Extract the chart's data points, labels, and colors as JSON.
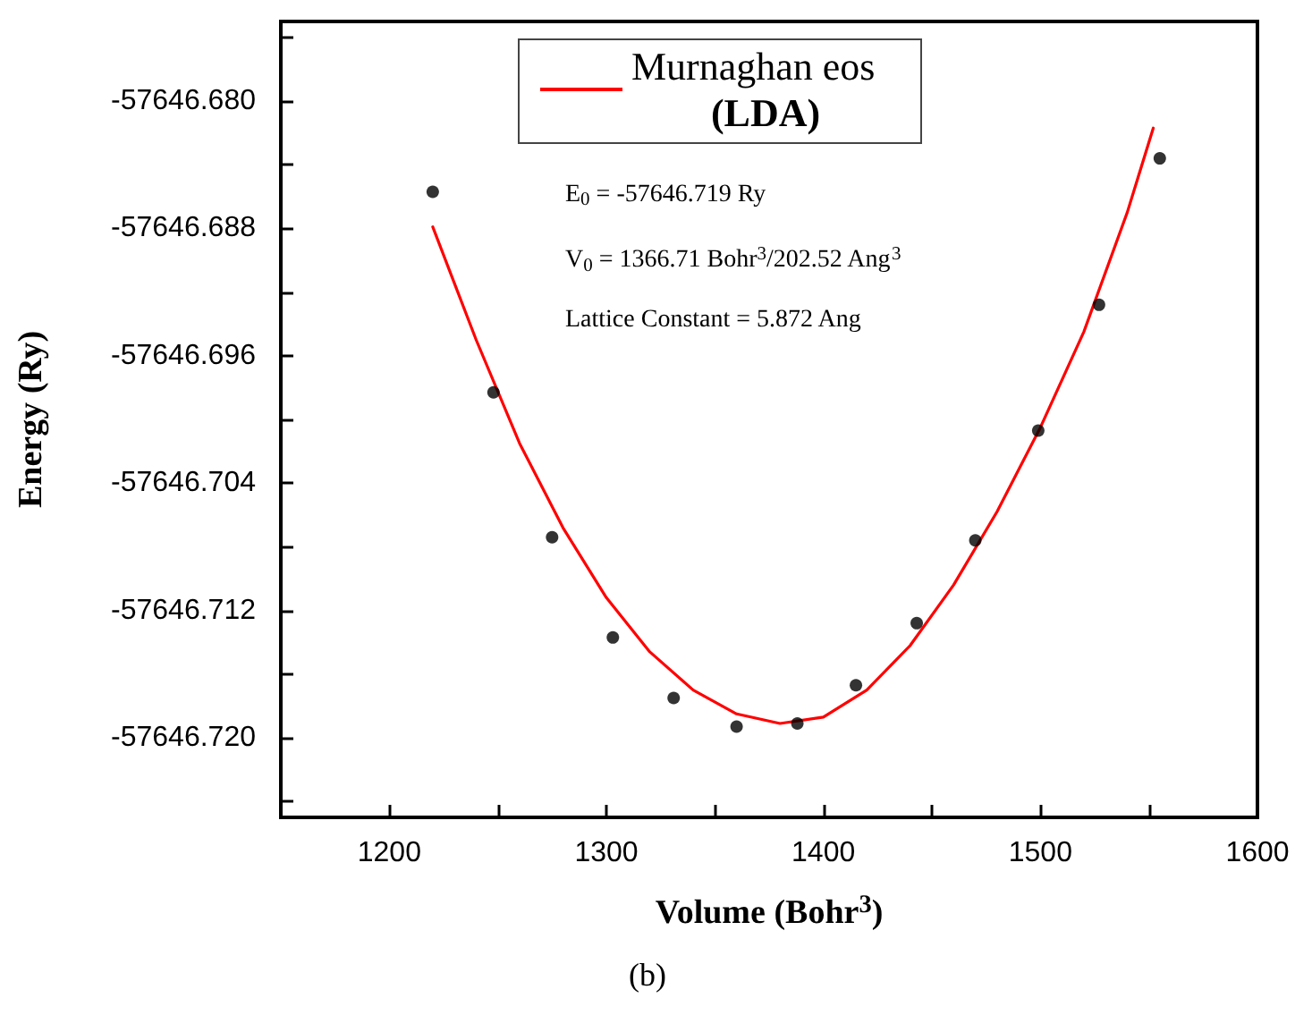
{
  "chart_data": {
    "type": "scatter",
    "title": "(b)",
    "xlabel": "Volume (Bohr$^{3}$)",
    "ylabel": "Energy (Ry)",
    "legend_title": "(LDA)",
    "legend": "top",
    "grid": false,
    "annotations": [
      "E$_{0}$ = -57646.719 Ry",
      "V$_{0}$ = 1366.71 Bohr$^{3}$/202.52 Ang$^{3}$",
      "Lattice Constant = 5.872 Ang"
    ],
    "xlim": [
      1150,
      1600
    ],
    "xticks": [
      1200,
      {
        "value": 1250,
        "label": null
      },
      1300,
      {
        "value": 1350,
        "label": null
      },
      1400,
      {
        "value": 1450,
        "label": null
      },
      1500,
      {
        "value": 1550,
        "label": null
      },
      1600
    ],
    "ylim": [
      -57646.725,
      -57646.675
    ],
    "yticks": [
      {
        "value": -57646.724,
        "label": null
      },
      {
        "value": -57646.72,
        "label": "-57646.720"
      },
      {
        "value": -57646.716,
        "label": null
      },
      {
        "value": -57646.712,
        "label": "-57646.712"
      },
      {
        "value": -57646.708,
        "label": null
      },
      {
        "value": -57646.704,
        "label": "-57646.704"
      },
      {
        "value": -57646.7,
        "label": null
      },
      {
        "value": -57646.696,
        "label": "-57646.696"
      },
      {
        "value": -57646.692,
        "label": null
      },
      {
        "value": -57646.688,
        "label": "-57646.688"
      },
      {
        "value": -57646.684,
        "label": null
      },
      {
        "value": -57646.68,
        "label": "-57646.680"
      },
      {
        "value": -57646.676,
        "label": null
      }
    ],
    "series": [
      {
        "color": "#000000",
        "marker": "circle",
        "x": [
          1220,
          1248,
          1275,
          1303,
          1331,
          1360,
          1388,
          1415,
          1443,
          1470,
          1499,
          1527,
          1555
        ],
        "values": [
          -57646.6857,
          -57646.6983,
          -57646.7074,
          -57646.7137,
          -57646.7175,
          -57646.7193,
          -57646.7191,
          -57646.7167,
          -57646.7128,
          -57646.7076,
          -57646.7007,
          -57646.6928,
          -57646.6836
        ]
      },
      {
        "type": "line",
        "name": "Murnaghan eos",
        "color": "#ff0000",
        "marker": "none",
        "line_style": "solid",
        "x": [
          1220,
          1240,
          1260,
          1280,
          1300,
          1320,
          1340,
          1360,
          1380,
          1400,
          1420,
          1440,
          1460,
          1480,
          1500,
          1520,
          1540,
          1552
        ],
        "values": [
          -57646.6879,
          -57646.695,
          -57646.7015,
          -57646.7068,
          -57646.7112,
          -57646.7146,
          -57646.717,
          -57646.7185,
          -57646.7191,
          -57646.7187,
          -57646.717,
          -57646.7142,
          -57646.7104,
          -57646.7058,
          -57646.7005,
          -57646.6945,
          -57646.687,
          -57646.6817
        ]
      }
    ]
  }
}
